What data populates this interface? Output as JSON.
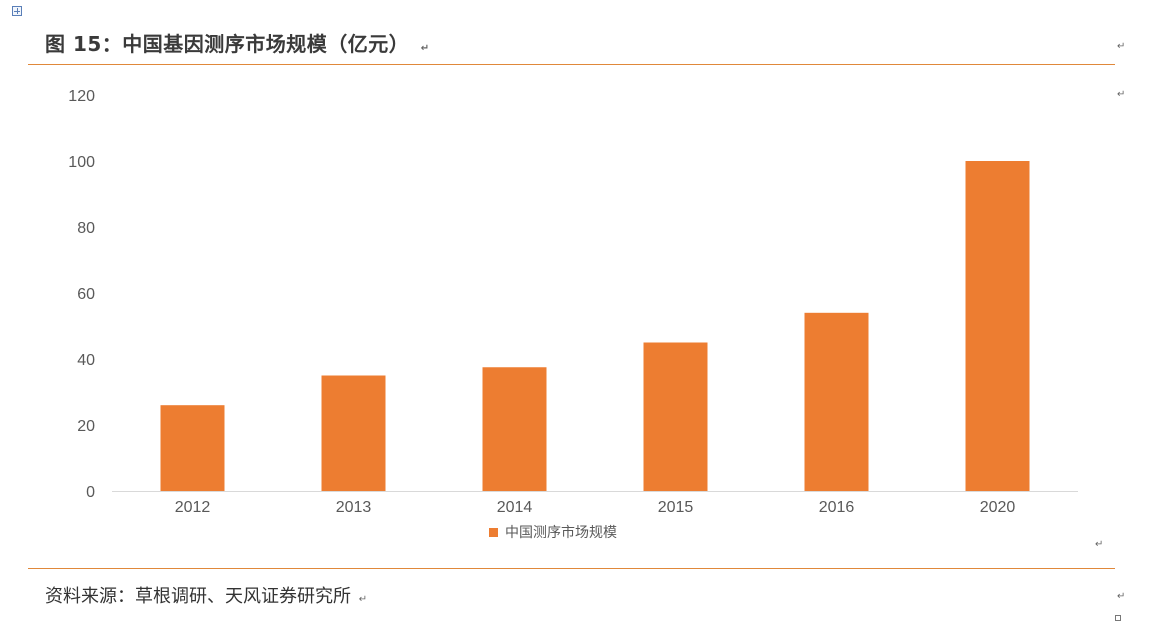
{
  "figure": {
    "title": "图 15：中国基因测序市场规模（亿元）",
    "source": "资料来源：草根调研、天风证券研究所"
  },
  "marks": {
    "paragraph": "↵",
    "table_handle_icon": "table-move-handle-icon"
  },
  "chart_data": {
    "type": "bar",
    "categories": [
      "2012",
      "2013",
      "2014",
      "2015",
      "2016",
      "2020"
    ],
    "series": [
      {
        "name": "中国测序市场规模",
        "color": "#ED7D31",
        "values": [
          26,
          35,
          37.5,
          45,
          54,
          100
        ]
      }
    ],
    "ylim": [
      0,
      120
    ],
    "yticks": [
      0,
      20,
      40,
      60,
      80,
      100,
      120
    ],
    "grid": false,
    "legend": "bottom-center",
    "title": "",
    "xlabel": "",
    "ylabel": ""
  }
}
